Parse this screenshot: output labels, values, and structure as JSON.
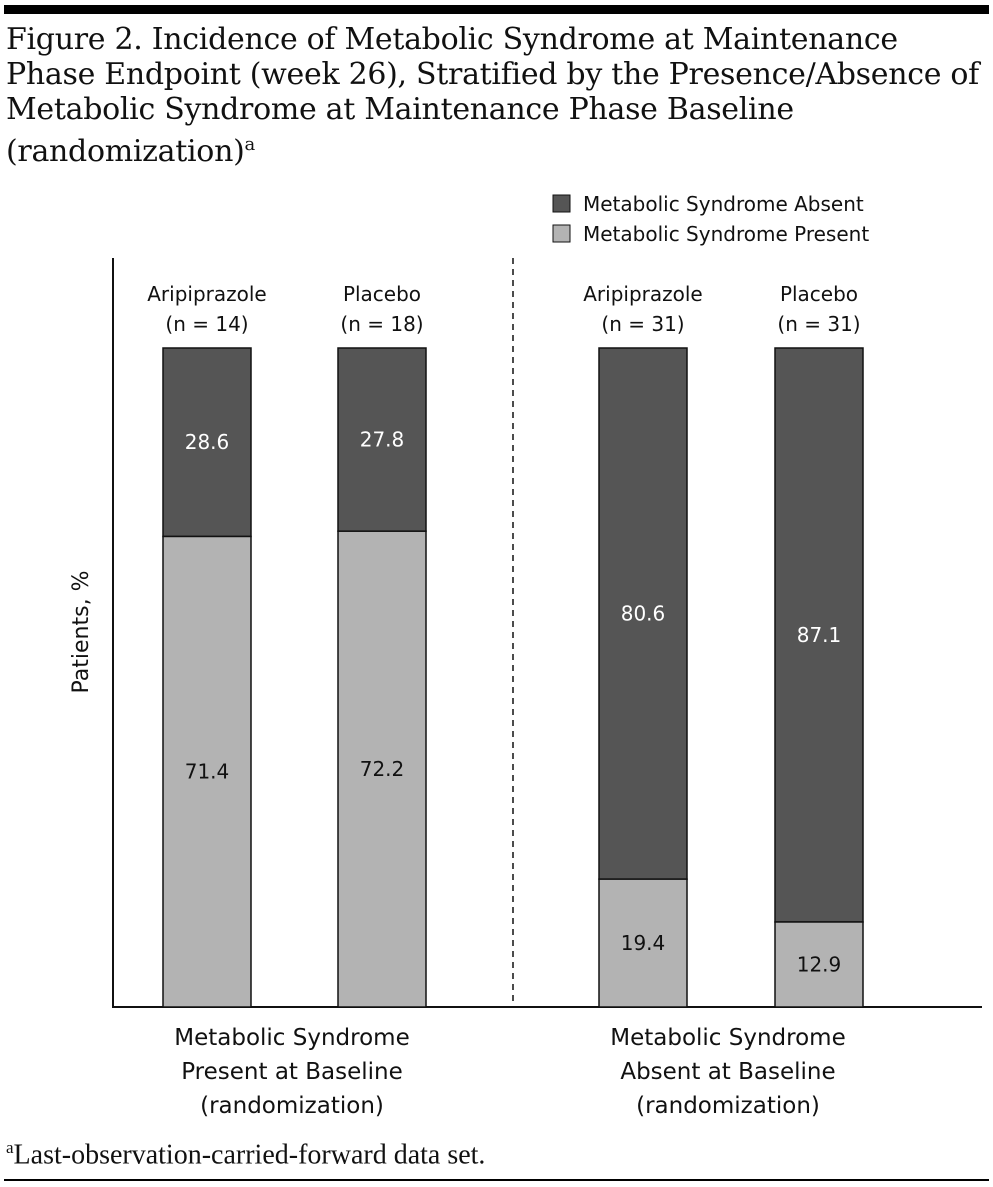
{
  "title": "Figure 2. Incidence of Metabolic Syndrome at Maintenance Phase Endpoint (week 26), Stratified by the Presence/Absence of Metabolic Syndrome at Maintenance Phase Baseline (randomization)",
  "title_sup": "a",
  "footnote_sup": "a",
  "footnote": "Last-observation-carried-forward data set.",
  "chart_data": {
    "type": "bar",
    "stacked": true,
    "ylabel": "Patients, %",
    "ylim": [
      0,
      100
    ],
    "colors": {
      "absent": "#555555",
      "present": "#b3b3b3"
    },
    "legend": {
      "position": "top-right",
      "entries": [
        "Metabolic Syndrome Absent",
        "Metabolic Syndrome  Present"
      ]
    },
    "groups": [
      {
        "label": [
          "Metabolic Syndrome",
          "Present at Baseline",
          "(randomization)"
        ],
        "bars": [
          {
            "name": "Aripiprazole",
            "n": "(n = 14)",
            "absent": 28.6,
            "present": 71.4
          },
          {
            "name": "Placebo",
            "n": "(n = 18)",
            "absent": 27.8,
            "present": 72.2
          }
        ]
      },
      {
        "label": [
          "Metabolic Syndrome",
          "Absent at Baseline",
          "(randomization)"
        ],
        "bars": [
          {
            "name": "Aripiprazole",
            "n": "(n = 31)",
            "absent": 80.6,
            "present": 19.4
          },
          {
            "name": "Placebo",
            "n": "(n = 31)",
            "absent": 87.1,
            "present": 12.9
          }
        ]
      }
    ]
  }
}
